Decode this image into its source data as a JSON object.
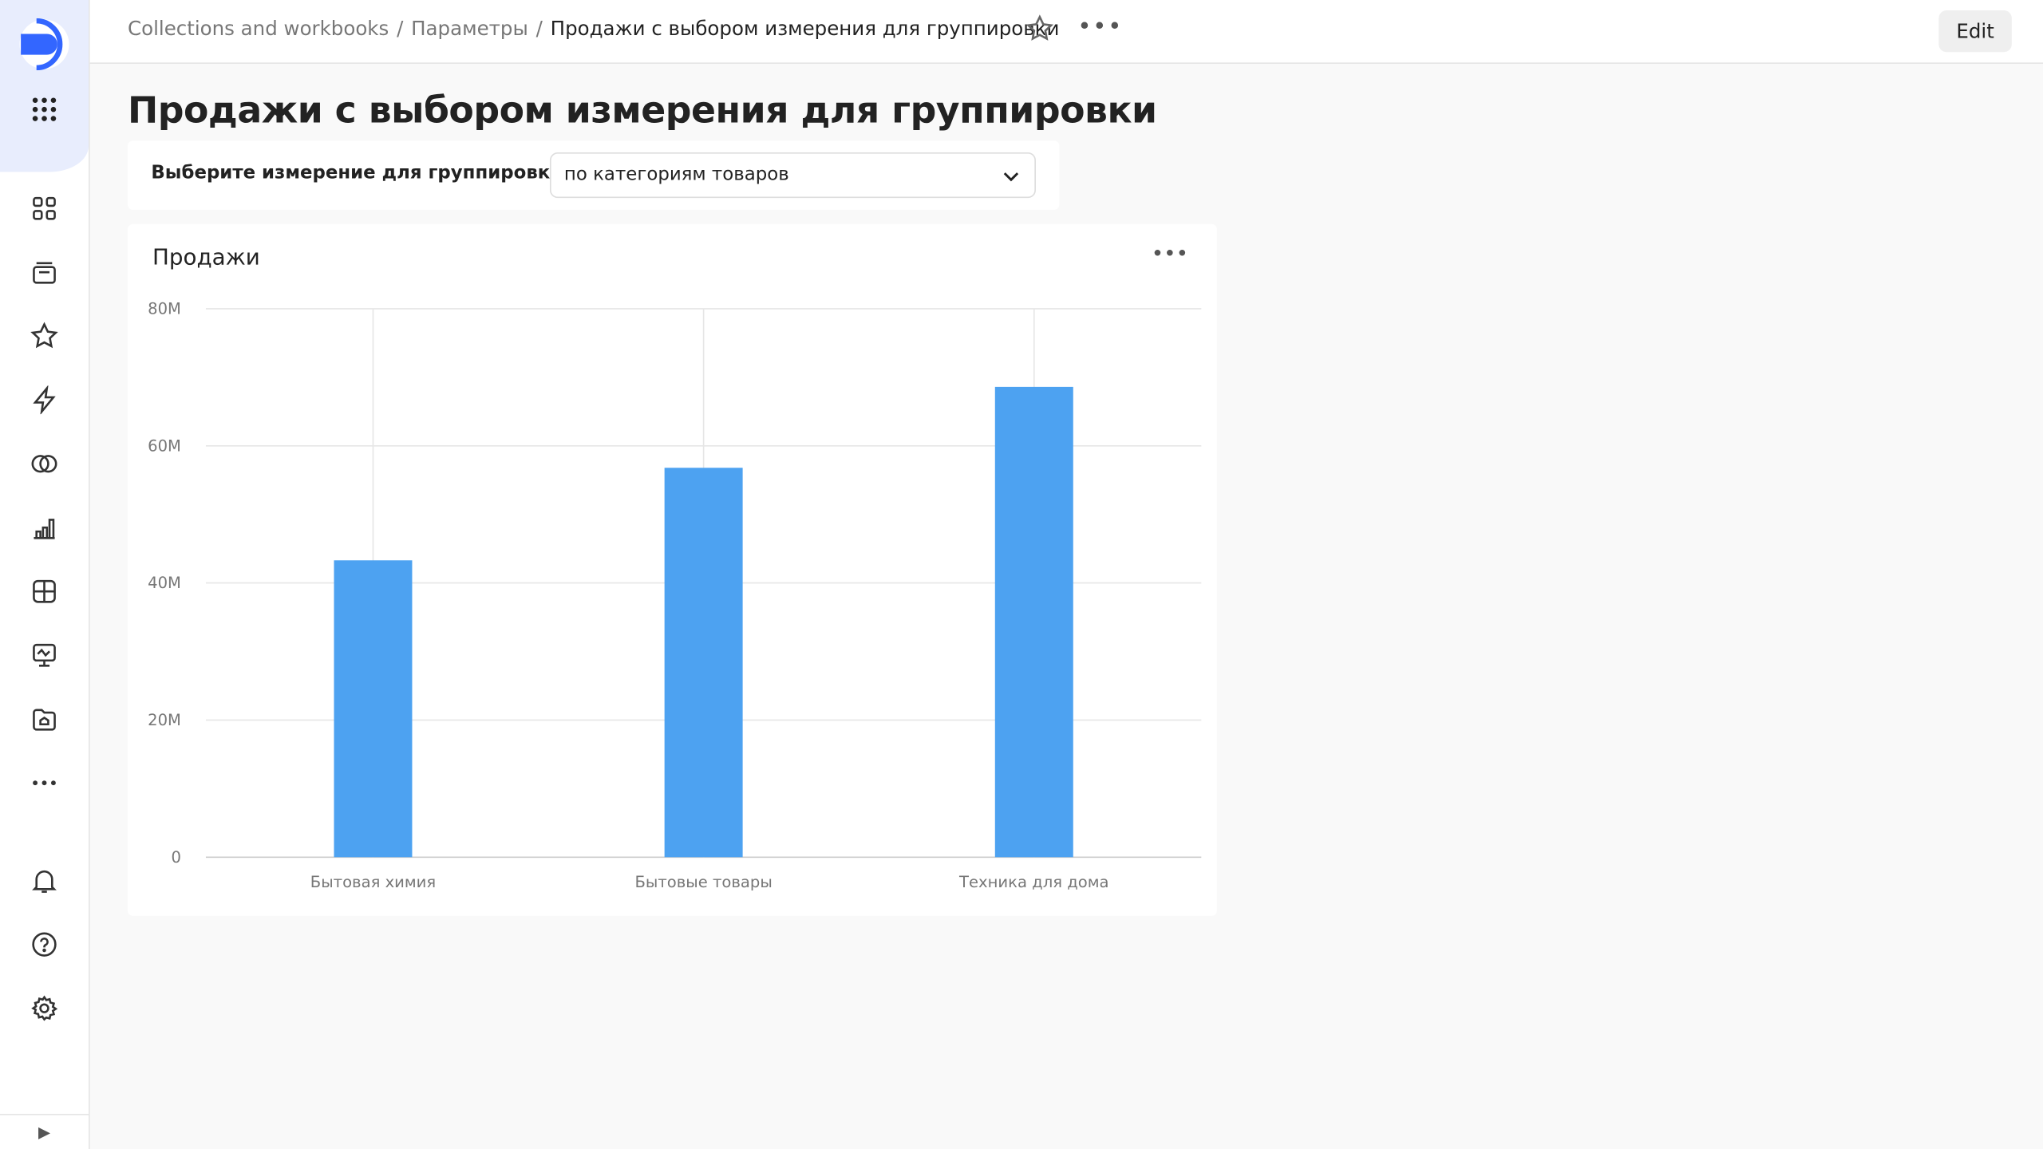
{
  "sidebar": {
    "icons": [
      "logo",
      "apps-grid-icon",
      "dashboards-icon",
      "collections-icon",
      "favorites-star-icon",
      "lightning-icon",
      "connections-icon",
      "charts-icon",
      "datasets-icon",
      "monitoring-icon",
      "folder-icon",
      "more-icon",
      "bell-icon",
      "help-icon",
      "settings-gear-icon",
      "expand-icon"
    ]
  },
  "header": {
    "breadcrumbs": [
      "Collections and workbooks",
      "Параметры",
      "Продажи с выбором измерения для группировки"
    ],
    "separator": "/",
    "edit_label": "Edit",
    "more": "•••"
  },
  "page": {
    "title": "Продажи с выбором измерения для группировки"
  },
  "selector": {
    "label": "Выберите измерение для группировки",
    "value": "по категориям товаров"
  },
  "widget": {
    "title": "Продажи",
    "more": "•••"
  },
  "chart_data": {
    "type": "bar",
    "title": "Продажи",
    "categories": [
      "Бытовая химия",
      "Бытовые товары",
      "Техника для дома"
    ],
    "values": [
      43300000,
      56800000,
      68600000
    ],
    "ylim": [
      0,
      80000000
    ],
    "yticks": [
      "0",
      "20M",
      "40M",
      "60M",
      "80M"
    ],
    "grid": true,
    "color": "#4da2f1"
  }
}
